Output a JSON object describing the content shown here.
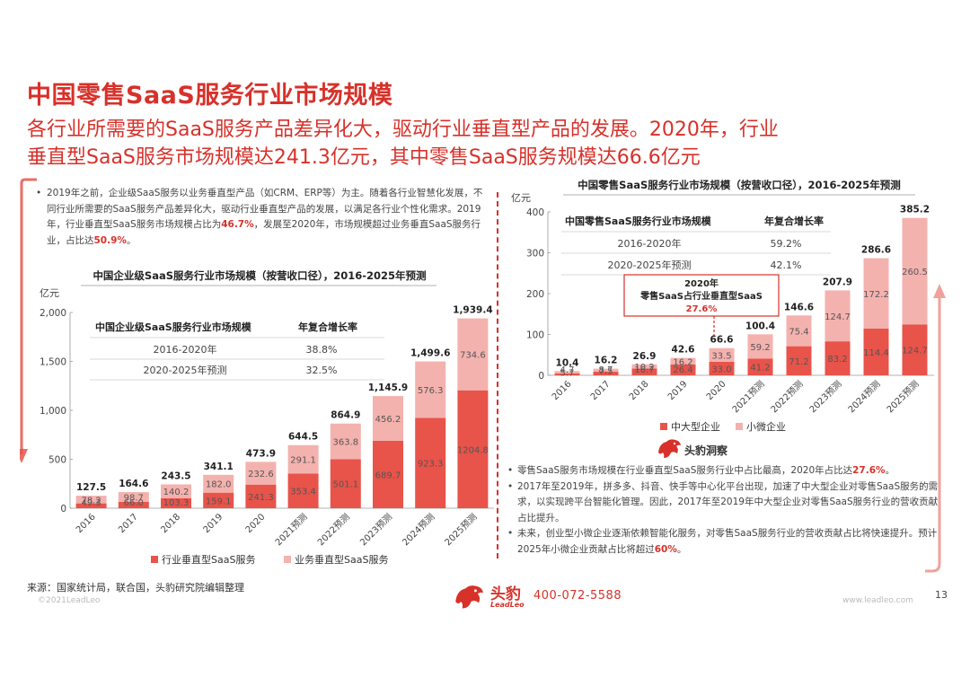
{
  "header": {
    "title": "中国零售SaaS服务行业市场规模",
    "subtitle_line1": "各行业所需要的SaaS服务产品差异化大，驱动行业垂直型产品的发展。2020年，行业",
    "subtitle_line2": "垂直型SaaS服务市场规模达241.3亿元，其中零售SaaS服务规模达66.6亿元"
  },
  "left_intro": {
    "p1": "2019年之前，企业级SaaS服务以业务垂直型产品（如CRM、ERP等）为主。随着各行业智慧化发展，不同行业所需要的SaaS服务产品差异化大，驱动行业垂直型产品的发展，以满足各行业个性化需求。2019年，行业垂直型SaaS服务市场规模占比为",
    "p1_hl": "46.7%",
    "p2": "，发展至2020年，市场规模超过业务垂直SaaS服务行业，占比达",
    "p2_hl": "50.9%",
    "p3": "。"
  },
  "chart_data": [
    {
      "type": "bar",
      "stacked": true,
      "title": "中国企业级SaaS服务行业市场规模（按营收口径），2016-2025年预测",
      "ylabel": "亿元",
      "ylim": [
        0,
        2000
      ],
      "yticks": [
        "0",
        "500",
        "1,000",
        "1,500",
        "2,000"
      ],
      "categories": [
        "2016",
        "2017",
        "2018",
        "2019",
        "2020",
        "2021预测",
        "2022预测",
        "2023预测",
        "2024预测",
        "2025预测"
      ],
      "series": [
        {
          "name": "行业垂直型SaaS服务",
          "color": "#e8534a",
          "values": [
            49.3,
            66.0,
            103.3,
            159.1,
            241.3,
            353.4,
            501.1,
            689.7,
            923.3,
            1204.8
          ],
          "labels": [
            "49.3",
            "66.0",
            "103.3",
            "159.1",
            "241.3",
            "353.4",
            "501.1",
            "689.7",
            "923.3",
            "1204.8"
          ]
        },
        {
          "name": "业务垂直型SaaS服务",
          "color": "#f4b2ae",
          "values": [
            78.2,
            98.7,
            140.2,
            182.0,
            232.6,
            291.1,
            363.8,
            456.2,
            576.3,
            734.6
          ],
          "labels": [
            "78.2",
            "98.7",
            "140.2",
            "182.0",
            "232.6",
            "291.1",
            "363.8",
            "456.2",
            "576.3",
            "734.6"
          ]
        }
      ],
      "totals": [
        "127.5",
        "164.6",
        "243.5",
        "341.1",
        "473.9",
        "644.5",
        "864.9",
        "1,145.9",
        "1,499.6",
        "1,939.4"
      ],
      "cagr_table": {
        "headers": [
          "中国企业级SaaS服务行业市场规模",
          "年复合增长率"
        ],
        "rows": [
          [
            "2016-2020年",
            "38.8%"
          ],
          [
            "2020-2025年预测",
            "32.5%"
          ]
        ]
      },
      "grid": false,
      "legend": "bottom"
    },
    {
      "type": "bar",
      "stacked": true,
      "title": "中国零售SaaS服务行业市场规模（按营收口径），2016-2025年预测",
      "ylabel": "亿元",
      "ylim": [
        0,
        400
      ],
      "yticks": [
        "0",
        "100",
        "200",
        "300",
        "400"
      ],
      "categories": [
        "2016",
        "2017",
        "2018",
        "2019",
        "2020",
        "2021预测",
        "2022预测",
        "2023预测",
        "2024预测",
        "2025预测"
      ],
      "series": [
        {
          "name": "中大型企业",
          "color": "#e8534a",
          "values": [
            4.7,
            8.7,
            16.7,
            26.4,
            33.0,
            41.2,
            71.2,
            83.2,
            114.4,
            124.7
          ],
          "labels": [
            "4.7",
            "8.7",
            "16.7",
            "26.4",
            "33.0",
            "41.2",
            "71.2",
            "83.2",
            "114.4",
            "124.7"
          ]
        },
        {
          "name": "小微企业",
          "color": "#f4b2ae",
          "values": [
            5.7,
            7.5,
            10.2,
            16.2,
            33.5,
            59.2,
            75.4,
            124.7,
            172.2,
            260.5
          ],
          "labels": [
            "5.7",
            "7.5",
            "10.2",
            "16.2",
            "33.5",
            "59.2",
            "75.4",
            "124.7",
            "172.2",
            "260.5"
          ]
        }
      ],
      "totals": [
        "10.4",
        "16.2",
        "26.9",
        "42.6",
        "66.6",
        "100.4",
        "146.6",
        "207.9",
        "286.6",
        "385.2"
      ],
      "cagr_table": {
        "headers": [
          "中国零售SaaS服务行业市场规模",
          "年复合增长率"
        ],
        "rows": [
          [
            "2016-2020年",
            "59.2%"
          ],
          [
            "2020-2025年预测",
            "42.1%"
          ]
        ]
      },
      "annotation": {
        "line1": "2020年",
        "line2": "零售SaaS占行业垂直型SaaS",
        "value": "27.6%"
      },
      "grid": false,
      "legend": "bottom"
    }
  ],
  "insight": {
    "label": "头豹洞察",
    "notes": [
      {
        "pre": "零售SaaS服务市场规模在行业垂直型SaaS服务行业中占比最高，2020年占比达",
        "hl": "27.6%",
        "post": "。"
      },
      {
        "pre": "2017年至2019年，拼多多、抖音、快手等中心化平台出现，加速了中大型企业对零售SaaS服务的需求，以实现跨平台智能化管理。因此，2017年至2019年中大型企业对零售SaaS服务行业的营收贡献占比提升。",
        "hl": "",
        "post": ""
      },
      {
        "pre": "未来，创业型小微企业逐渐依赖智能化服务，对零售SaaS服务行业的营收贡献占比将快速提升。预计2025年小微企业贡献占比将超过",
        "hl": "60%",
        "post": "。"
      }
    ]
  },
  "footer": {
    "source": "来源：国家统计局，联合国，头豹研究院编辑整理",
    "copyright": "©2021LeadLeo",
    "brand": "头豹",
    "brand_sub": "LeadLeo",
    "phone": "400-072-5588",
    "website": "www.leadleo.com",
    "page": "13"
  },
  "colors": {
    "accent": "#d7312a",
    "dark_bar": "#e8534a",
    "light_bar": "#f4b2ae"
  }
}
